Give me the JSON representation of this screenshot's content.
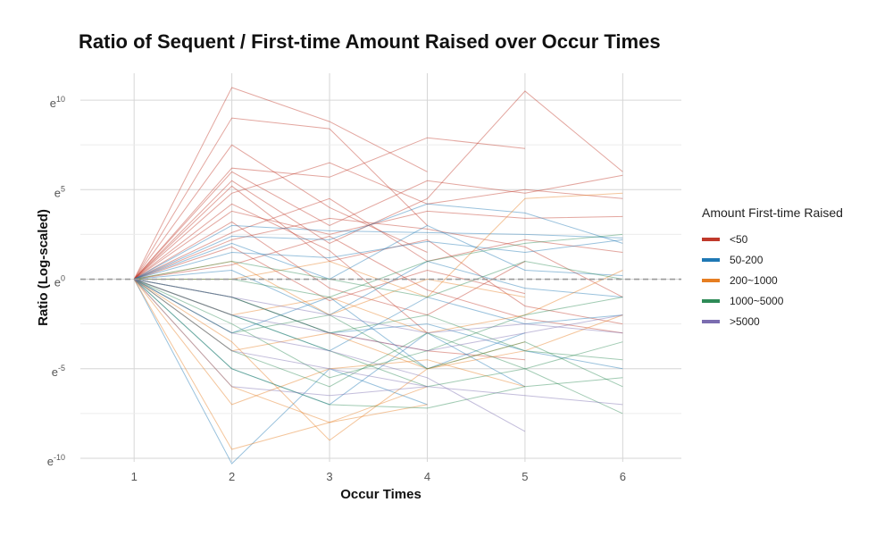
{
  "chart_data": {
    "type": "line",
    "title": "Ratio of Sequent / First-time Amount Raised over Occur Times",
    "xlabel": "Occur Times",
    "ylabel": "Ratio (Log-scaled)",
    "x_ticks": [
      1,
      2,
      3,
      4,
      5,
      6
    ],
    "xlim": [
      0.45,
      6.6
    ],
    "y_scale": "log (natural)",
    "y_ticks": [
      {
        "base": "e",
        "exp": "10",
        "value_ln": 10
      },
      {
        "base": "e",
        "exp": "5",
        "value_ln": 5
      },
      {
        "base": "e",
        "exp": "0",
        "value_ln": 0
      },
      {
        "base": "e",
        "exp": "-5",
        "value_ln": -5
      },
      {
        "base": "e",
        "exp": "-10",
        "value_ln": -10
      }
    ],
    "ylim_ln": [
      -10.2,
      11.5
    ],
    "reference_line": {
      "value_ln": 0,
      "style": "dashed",
      "color": "#999999"
    },
    "grid": true,
    "legend": {
      "title": "Amount First-time Raised",
      "position": "right",
      "items": [
        {
          "label": "<50",
          "color": "#C0392B"
        },
        {
          "label": "50-200",
          "color": "#1F78B4"
        },
        {
          "label": "200~1000",
          "color": "#E67E22"
        },
        {
          "label": "1000~5000",
          "color": "#2E8B57"
        },
        {
          "label": ">5000",
          "color": "#7B6DB0"
        }
      ]
    },
    "series": [
      {
        "group": "<50",
        "points": [
          [
            1,
            0
          ],
          [
            2,
            10.7
          ],
          [
            3,
            8.8
          ],
          [
            4,
            6
          ]
        ]
      },
      {
        "group": "<50",
        "points": [
          [
            1,
            0
          ],
          [
            2,
            9
          ],
          [
            3,
            8.4
          ],
          [
            4,
            3
          ]
        ]
      },
      {
        "group": "<50",
        "points": [
          [
            1,
            0
          ],
          [
            2,
            6.2
          ],
          [
            3,
            5.7
          ],
          [
            4,
            7.9
          ],
          [
            5,
            7.3
          ]
        ]
      },
      {
        "group": "<50",
        "points": [
          [
            1,
            0
          ],
          [
            2,
            5.5
          ],
          [
            3,
            2
          ],
          [
            4,
            4.5
          ],
          [
            5,
            10.5
          ],
          [
            6,
            6
          ]
        ]
      },
      {
        "group": "<50",
        "points": [
          [
            1,
            0
          ],
          [
            2,
            4.8
          ],
          [
            3,
            6.5
          ],
          [
            4,
            4.2
          ],
          [
            5,
            5
          ],
          [
            6,
            4.5
          ]
        ]
      },
      {
        "group": "<50",
        "points": [
          [
            1,
            0
          ],
          [
            2,
            7.5
          ],
          [
            3,
            4
          ],
          [
            4,
            1.5
          ]
        ]
      },
      {
        "group": "<50",
        "points": [
          [
            1,
            0
          ],
          [
            2,
            3.8
          ],
          [
            3,
            2.5
          ],
          [
            4,
            3.8
          ],
          [
            5,
            3.4
          ],
          [
            6,
            3.5
          ]
        ]
      },
      {
        "group": "<50",
        "points": [
          [
            1,
            0
          ],
          [
            2,
            5.2
          ],
          [
            3,
            1
          ],
          [
            4,
            2.2
          ],
          [
            5,
            -1.5
          ],
          [
            6,
            -2.5
          ]
        ]
      },
      {
        "group": "<50",
        "points": [
          [
            1,
            0
          ],
          [
            2,
            2.6
          ],
          [
            3,
            4.5
          ],
          [
            4,
            1
          ],
          [
            5,
            2.2
          ],
          [
            6,
            1.5
          ]
        ]
      },
      {
        "group": "<50",
        "points": [
          [
            1,
            0
          ],
          [
            2,
            3.2
          ],
          [
            3,
            -0.5
          ],
          [
            4,
            -2
          ],
          [
            5,
            1
          ]
        ]
      },
      {
        "group": "<50",
        "points": [
          [
            1,
            0
          ],
          [
            2,
            6
          ],
          [
            3,
            3
          ],
          [
            4,
            5.5
          ],
          [
            5,
            4.8
          ],
          [
            6,
            5.8
          ]
        ]
      },
      {
        "group": "<50",
        "points": [
          [
            1,
            0
          ],
          [
            2,
            1.8
          ],
          [
            3,
            -1.2
          ],
          [
            4,
            0.5
          ],
          [
            5,
            -0.8
          ]
        ]
      },
      {
        "group": "<50",
        "points": [
          [
            1,
            0
          ],
          [
            2,
            4.2
          ],
          [
            3,
            1.6
          ],
          [
            4,
            -3
          ]
        ]
      },
      {
        "group": "<50",
        "points": [
          [
            1,
            0
          ],
          [
            2,
            2.2
          ],
          [
            3,
            3.4
          ],
          [
            4,
            2.8
          ],
          [
            5,
            1.8
          ],
          [
            6,
            -1
          ]
        ]
      },
      {
        "group": "<50",
        "points": [
          [
            1,
            0
          ],
          [
            2,
            -1
          ],
          [
            3,
            -3
          ],
          [
            4,
            -4
          ],
          [
            5,
            -4.5
          ]
        ]
      },
      {
        "group": "<50",
        "points": [
          [
            1,
            0
          ],
          [
            2,
            0.8
          ],
          [
            3,
            2.4
          ],
          [
            4,
            -0.6
          ],
          [
            5,
            -2.2
          ],
          [
            6,
            -3
          ]
        ]
      },
      {
        "group": "50-200",
        "points": [
          [
            1,
            0
          ],
          [
            2,
            3
          ],
          [
            3,
            2.7
          ],
          [
            4,
            2.6
          ],
          [
            5,
            2.5
          ],
          [
            6,
            2.3
          ]
        ]
      },
      {
        "group": "50-200",
        "points": [
          [
            1,
            0
          ],
          [
            2,
            2.4
          ],
          [
            3,
            2.2
          ],
          [
            4,
            4.2
          ],
          [
            5,
            3.7
          ],
          [
            6,
            2
          ]
        ]
      },
      {
        "group": "50-200",
        "points": [
          [
            1,
            0
          ],
          [
            2,
            1.5
          ],
          [
            3,
            1.2
          ],
          [
            4,
            2.1
          ],
          [
            5,
            1.5
          ],
          [
            6,
            2.2
          ]
        ]
      },
      {
        "group": "50-200",
        "points": [
          [
            1,
            0
          ],
          [
            2,
            -1
          ],
          [
            3,
            -3
          ],
          [
            4,
            -2.5
          ],
          [
            5,
            -4
          ],
          [
            6,
            -5
          ]
        ]
      },
      {
        "group": "50-200",
        "points": [
          [
            1,
            0
          ],
          [
            2,
            -3
          ],
          [
            3,
            -1
          ],
          [
            4,
            -5
          ],
          [
            5,
            -3
          ]
        ]
      },
      {
        "group": "50-200",
        "points": [
          [
            1,
            0
          ],
          [
            2,
            -10.3
          ],
          [
            3,
            -5
          ],
          [
            4,
            -7
          ]
        ]
      },
      {
        "group": "50-200",
        "points": [
          [
            1,
            0
          ],
          [
            2,
            0.5
          ],
          [
            3,
            -2
          ],
          [
            4,
            1
          ],
          [
            5,
            -0.5
          ],
          [
            6,
            -1
          ]
        ]
      },
      {
        "group": "50-200",
        "points": [
          [
            1,
            0
          ],
          [
            2,
            -5
          ],
          [
            3,
            -7
          ],
          [
            4,
            -3
          ],
          [
            5,
            -6
          ]
        ]
      },
      {
        "group": "50-200",
        "points": [
          [
            1,
            0
          ],
          [
            2,
            2
          ],
          [
            3,
            0
          ],
          [
            4,
            3
          ],
          [
            5,
            0.5
          ],
          [
            6,
            0.2
          ]
        ]
      },
      {
        "group": "50-200",
        "points": [
          [
            1,
            0
          ],
          [
            2,
            -2
          ],
          [
            3,
            -4
          ],
          [
            4,
            -1
          ],
          [
            5,
            -2.5
          ],
          [
            6,
            -2
          ]
        ]
      },
      {
        "group": "200~1000",
        "points": [
          [
            1,
            0
          ],
          [
            2,
            -9.5
          ],
          [
            3,
            -8
          ],
          [
            4,
            -6
          ]
        ]
      },
      {
        "group": "200~1000",
        "points": [
          [
            1,
            0
          ],
          [
            2,
            -3.5
          ],
          [
            3,
            -9
          ],
          [
            4,
            -5
          ],
          [
            5,
            -3.5
          ]
        ]
      },
      {
        "group": "200~1000",
        "points": [
          [
            1,
            0
          ],
          [
            2,
            0
          ],
          [
            3,
            1
          ],
          [
            4,
            -1
          ],
          [
            5,
            4.5
          ],
          [
            6,
            4.8
          ]
        ]
      },
      {
        "group": "200~1000",
        "points": [
          [
            1,
            0
          ],
          [
            2,
            -6
          ],
          [
            3,
            -8
          ],
          [
            4,
            -7
          ]
        ]
      },
      {
        "group": "200~1000",
        "points": [
          [
            1,
            0
          ],
          [
            2,
            -2
          ],
          [
            3,
            -1
          ],
          [
            4,
            -3
          ],
          [
            5,
            -2
          ],
          [
            6,
            0.5
          ]
        ]
      },
      {
        "group": "200~1000",
        "points": [
          [
            1,
            0
          ],
          [
            2,
            -4
          ],
          [
            3,
            -3
          ],
          [
            4,
            -5
          ],
          [
            5,
            -4
          ],
          [
            6,
            -2
          ]
        ]
      },
      {
        "group": "200~1000",
        "points": [
          [
            1,
            0
          ],
          [
            2,
            1
          ],
          [
            3,
            -2
          ],
          [
            4,
            0
          ],
          [
            5,
            -1
          ]
        ]
      },
      {
        "group": "200~1000",
        "points": [
          [
            1,
            0
          ],
          [
            2,
            -7
          ],
          [
            3,
            -5
          ],
          [
            4,
            -4.5
          ],
          [
            5,
            -6
          ]
        ]
      },
      {
        "group": "1000~5000",
        "points": [
          [
            1,
            0
          ],
          [
            2,
            -2
          ],
          [
            3,
            -4
          ],
          [
            4,
            -6
          ],
          [
            5,
            -5
          ],
          [
            6,
            -7.5
          ]
        ]
      },
      {
        "group": "1000~5000",
        "points": [
          [
            1,
            0
          ],
          [
            2,
            0
          ],
          [
            3,
            -1
          ],
          [
            4,
            1
          ],
          [
            5,
            2
          ],
          [
            6,
            2.5
          ]
        ]
      },
      {
        "group": "1000~5000",
        "points": [
          [
            1,
            0
          ],
          [
            2,
            -5
          ],
          [
            3,
            -7
          ],
          [
            4,
            -7.2
          ],
          [
            5,
            -6
          ],
          [
            6,
            -5.5
          ]
        ]
      },
      {
        "group": "1000~5000",
        "points": [
          [
            1,
            0
          ],
          [
            2,
            -1
          ],
          [
            3,
            -3
          ],
          [
            4,
            -2
          ],
          [
            5,
            -4
          ],
          [
            6,
            -4.5
          ]
        ]
      },
      {
        "group": "1000~5000",
        "points": [
          [
            1,
            0
          ],
          [
            2,
            1
          ],
          [
            3,
            0
          ],
          [
            4,
            -1
          ],
          [
            5,
            1
          ],
          [
            6,
            0
          ]
        ]
      },
      {
        "group": "1000~5000",
        "points": [
          [
            1,
            0
          ],
          [
            2,
            -3
          ],
          [
            3,
            -2
          ],
          [
            4,
            -5
          ],
          [
            5,
            -3.5
          ],
          [
            6,
            -6
          ]
        ]
      },
      {
        "group": "1000~5000",
        "points": [
          [
            1,
            0
          ],
          [
            2,
            -4
          ],
          [
            3,
            -6
          ],
          [
            4,
            -3
          ],
          [
            5,
            -5
          ],
          [
            6,
            -3.5
          ]
        ]
      },
      {
        "group": "1000~5000",
        "points": [
          [
            1,
            0
          ],
          [
            2,
            -2.5
          ],
          [
            3,
            -5.5
          ],
          [
            4,
            -4
          ],
          [
            5,
            -2
          ],
          [
            6,
            -1
          ]
        ]
      },
      {
        "group": ">5000",
        "points": [
          [
            1,
            0
          ],
          [
            2,
            -6
          ],
          [
            3,
            -6.5
          ],
          [
            4,
            -6
          ],
          [
            5,
            -6.5
          ],
          [
            6,
            -7
          ]
        ]
      },
      {
        "group": ">5000",
        "points": [
          [
            1,
            0
          ],
          [
            2,
            -3
          ],
          [
            3,
            -4
          ],
          [
            4,
            -5.5
          ],
          [
            5,
            -8.5
          ]
        ]
      },
      {
        "group": ">5000",
        "points": [
          [
            1,
            0
          ],
          [
            2,
            -2
          ],
          [
            3,
            -3
          ],
          [
            4,
            -4
          ],
          [
            5,
            -3
          ],
          [
            6,
            -2
          ]
        ]
      },
      {
        "group": ">5000",
        "points": [
          [
            1,
            0
          ],
          [
            2,
            -4
          ],
          [
            3,
            -5
          ],
          [
            4,
            -6
          ]
        ]
      },
      {
        "group": ">5000",
        "points": [
          [
            1,
            0
          ],
          [
            2,
            -1
          ],
          [
            3,
            -2
          ],
          [
            4,
            -3
          ],
          [
            5,
            -2.5
          ],
          [
            6,
            -3
          ]
        ]
      }
    ]
  }
}
